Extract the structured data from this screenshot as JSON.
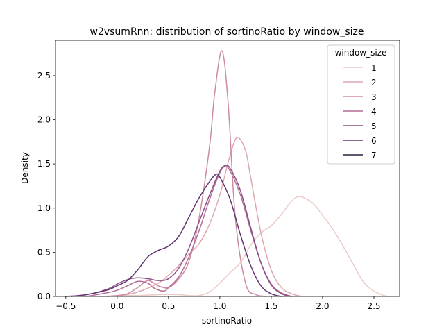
{
  "chart_data": {
    "type": "line",
    "title": "w2vsumRnn: distribution of sortinoRatio by window_size",
    "xlabel": "sortinoRatio",
    "ylabel": "Density",
    "xlim": [
      -0.6,
      2.75
    ],
    "ylim": [
      0,
      2.9
    ],
    "x_ticks": [
      -0.5,
      0.0,
      0.5,
      1.0,
      1.5,
      2.0,
      2.5
    ],
    "x_tick_labels": [
      "−0.5",
      "0.0",
      "0.5",
      "1.0",
      "1.5",
      "2.0",
      "2.5"
    ],
    "y_ticks": [
      0.0,
      0.5,
      1.0,
      1.5,
      2.0,
      2.5
    ],
    "y_tick_labels": [
      "0.0",
      "0.5",
      "1.0",
      "1.5",
      "2.0",
      "2.5"
    ],
    "grid": false,
    "legend": {
      "title": "window_size",
      "placement": "top-right"
    },
    "series": [
      {
        "name": "1",
        "color": "#eccbc6",
        "x": [
          -0.15,
          0.0,
          0.2,
          0.4,
          0.6,
          0.7,
          0.8,
          0.9,
          1.0,
          1.1,
          1.2,
          1.3,
          1.4,
          1.5,
          1.6,
          1.7,
          1.78,
          1.9,
          2.0,
          2.1,
          2.2,
          2.3,
          2.4,
          2.5,
          2.6,
          2.65
        ],
        "values": [
          0.0,
          0.01,
          0.01,
          0.02,
          0.02,
          0.01,
          0.01,
          0.05,
          0.15,
          0.27,
          0.38,
          0.58,
          0.72,
          0.8,
          0.93,
          1.08,
          1.13,
          1.06,
          0.92,
          0.76,
          0.57,
          0.36,
          0.16,
          0.06,
          0.01,
          0.0
        ]
      },
      {
        "name": "2",
        "color": "#dda7b1",
        "x": [
          0.0,
          0.2,
          0.4,
          0.5,
          0.6,
          0.7,
          0.8,
          0.9,
          1.0,
          1.1,
          1.17,
          1.25,
          1.3,
          1.4,
          1.5,
          1.6,
          1.7,
          1.8
        ],
        "values": [
          0.0,
          0.05,
          0.15,
          0.24,
          0.35,
          0.48,
          0.6,
          0.82,
          1.15,
          1.6,
          1.8,
          1.65,
          1.35,
          0.72,
          0.3,
          0.1,
          0.03,
          0.0
        ]
      },
      {
        "name": "3",
        "color": "#cc8aa2",
        "x": [
          -0.1,
          0.0,
          0.1,
          0.2,
          0.3,
          0.4,
          0.5,
          0.6,
          0.7,
          0.8,
          0.9,
          0.95,
          1.02,
          1.08,
          1.15,
          1.25,
          1.35,
          1.45
        ],
        "values": [
          0.0,
          0.01,
          0.03,
          0.1,
          0.18,
          0.12,
          0.1,
          0.2,
          0.4,
          0.9,
          1.7,
          2.3,
          2.78,
          2.2,
          0.9,
          0.15,
          0.02,
          0.0
        ]
      },
      {
        "name": "4",
        "color": "#b36c94",
        "x": [
          -0.3,
          -0.1,
          0.0,
          0.1,
          0.2,
          0.3,
          0.35,
          0.45,
          0.5,
          0.6,
          0.7,
          0.8,
          0.9,
          1.0,
          1.05,
          1.1,
          1.2,
          1.3,
          1.4,
          1.5,
          1.6,
          1.7
        ],
        "values": [
          0.0,
          0.04,
          0.07,
          0.12,
          0.17,
          0.15,
          0.1,
          0.06,
          0.1,
          0.22,
          0.45,
          0.75,
          1.1,
          1.4,
          1.47,
          1.42,
          1.15,
          0.75,
          0.38,
          0.14,
          0.04,
          0.0
        ]
      },
      {
        "name": "5",
        "color": "#8c4f86",
        "x": [
          -0.5,
          -0.3,
          -0.1,
          0.0,
          0.1,
          0.2,
          0.3,
          0.4,
          0.5,
          0.6,
          0.7,
          0.8,
          0.9,
          1.0,
          1.05,
          1.1,
          1.2,
          1.3,
          1.4,
          1.5,
          1.6,
          1.7
        ],
        "values": [
          0.0,
          0.02,
          0.08,
          0.14,
          0.19,
          0.21,
          0.2,
          0.18,
          0.2,
          0.32,
          0.55,
          0.85,
          1.15,
          1.42,
          1.48,
          1.45,
          1.2,
          0.78,
          0.38,
          0.13,
          0.03,
          0.0
        ]
      },
      {
        "name": "6",
        "color": "#5e3571",
        "x": [
          -0.45,
          -0.3,
          -0.1,
          0.0,
          0.1,
          0.2,
          0.3,
          0.4,
          0.5,
          0.6,
          0.7,
          0.8,
          0.9,
          0.96,
          1.0,
          1.1,
          1.2,
          1.3,
          1.4,
          1.5,
          1.6
        ],
        "values": [
          0.0,
          0.02,
          0.07,
          0.12,
          0.18,
          0.3,
          0.45,
          0.52,
          0.57,
          0.68,
          0.9,
          1.12,
          1.3,
          1.38,
          1.35,
          1.1,
          0.7,
          0.35,
          0.12,
          0.03,
          0.0
        ]
      },
      {
        "name": "7",
        "color": "#2d1e3e",
        "x": [],
        "values": []
      }
    ]
  }
}
